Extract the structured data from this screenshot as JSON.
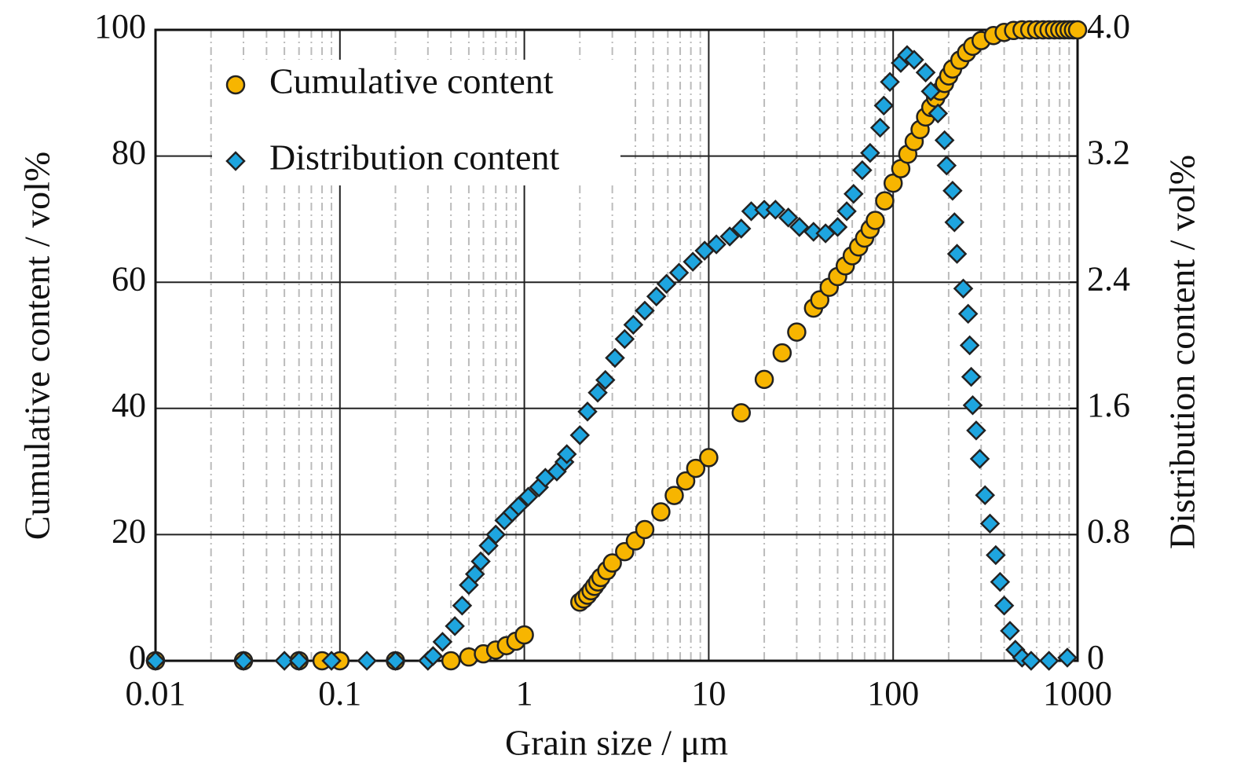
{
  "chart_data": {
    "type": "scatter",
    "xlabel": "Grain size / μm",
    "ylabel": "Cumulative content / vol%",
    "y2label": "Distribution content / vol%",
    "xscale": "log",
    "xlim": [
      0.01,
      1000
    ],
    "xticks": [
      0.01,
      0.1,
      1,
      10,
      100,
      1000
    ],
    "ylim": [
      0,
      100
    ],
    "yticks": [
      0,
      20,
      40,
      60,
      80,
      100
    ],
    "y2lim": [
      0,
      4
    ],
    "y2ticks": [
      0,
      0.8,
      1.6,
      2.4,
      3.2,
      {
        "value": 4,
        "label": "4.0"
      }
    ],
    "grid": true,
    "minor_grid": true,
    "legend": "upper left",
    "series": [
      {
        "name": "Cumulative content",
        "color": "#f7b500",
        "marker": "circle",
        "axis": "y",
        "x": [
          0.01,
          0.03,
          0.06,
          0.08,
          0.1,
          0.2,
          0.4,
          0.5,
          0.6,
          0.7,
          0.8,
          0.9,
          1.0,
          2.0,
          2.1,
          2.2,
          2.3,
          2.4,
          2.5,
          2.6,
          2.8,
          3.0,
          3.5,
          4.0,
          4.5,
          5.5,
          6.5,
          7.5,
          8.5,
          10,
          15,
          20,
          25,
          30,
          37,
          40,
          45,
          50,
          55,
          60,
          65,
          70,
          75,
          80,
          90,
          100,
          110,
          120,
          130,
          140,
          150,
          160,
          170,
          180,
          190,
          200,
          210,
          230,
          250,
          270,
          300,
          350,
          400,
          450,
          500,
          550,
          600,
          650,
          700,
          750,
          800,
          850,
          900,
          950,
          1000
        ],
        "values": [
          0,
          0,
          0,
          0,
          0,
          0,
          0,
          0.6,
          1.1,
          1.7,
          2.4,
          3.1,
          4.1,
          9.3,
          9.8,
          10.4,
          11.1,
          11.8,
          12.5,
          13.2,
          14.3,
          15.5,
          17.3,
          19.0,
          20.8,
          23.6,
          26.2,
          28.5,
          30.5,
          32.2,
          39.3,
          44.6,
          48.8,
          52.1,
          55.9,
          57.2,
          59.2,
          60.9,
          62.6,
          64.2,
          65.6,
          67.0,
          68.4,
          69.8,
          72.9,
          75.7,
          78.0,
          80.3,
          82.3,
          84.2,
          86.2,
          87.7,
          89.2,
          90.3,
          91.5,
          92.7,
          93.8,
          95.2,
          96.4,
          97.4,
          98.3,
          99.1,
          99.6,
          99.9,
          100,
          100,
          100,
          100,
          100,
          100,
          100,
          100,
          100,
          100,
          100
        ]
      },
      {
        "name": "Distribution content",
        "color": "#1ea5df",
        "marker": "diamond",
        "axis": "y2",
        "x": [
          0.01,
          0.03,
          0.05,
          0.06,
          0.09,
          0.14,
          0.2,
          0.3,
          0.32,
          0.36,
          0.42,
          0.46,
          0.5,
          0.54,
          0.58,
          0.64,
          0.7,
          0.78,
          0.86,
          0.93,
          1.05,
          1.2,
          1.3,
          1.5,
          1.65,
          1.7,
          2.0,
          2.2,
          2.5,
          2.75,
          3.1,
          3.5,
          3.9,
          4.5,
          5.2,
          5.9,
          6.9,
          8.2,
          9.5,
          11,
          13,
          15,
          17,
          20,
          23,
          27,
          31,
          37,
          43,
          50,
          56,
          61,
          68,
          75,
          85,
          89,
          96,
          110,
          119,
          130,
          150,
          160,
          175,
          190,
          195,
          210,
          215,
          222,
          240,
          255,
          260,
          265,
          270,
          282,
          295,
          315,
          335,
          360,
          380,
          400,
          430,
          460,
          500,
          560,
          700,
          880
        ],
        "values": [
          0,
          0,
          0,
          0,
          0,
          0,
          0,
          0,
          0.03,
          0.12,
          0.22,
          0.35,
          0.48,
          0.55,
          0.63,
          0.73,
          0.8,
          0.89,
          0.94,
          0.98,
          1.04,
          1.1,
          1.16,
          1.2,
          1.26,
          1.31,
          1.43,
          1.58,
          1.7,
          1.78,
          1.92,
          2.04,
          2.13,
          2.22,
          2.31,
          2.39,
          2.46,
          2.53,
          2.6,
          2.64,
          2.69,
          2.74,
          2.85,
          2.86,
          2.86,
          2.81,
          2.75,
          2.72,
          2.71,
          2.75,
          2.85,
          2.96,
          3.11,
          3.22,
          3.38,
          3.52,
          3.67,
          3.79,
          3.84,
          3.81,
          3.73,
          3.61,
          3.47,
          3.3,
          3.14,
          2.98,
          2.78,
          2.58,
          2.36,
          2.2,
          2.0,
          1.8,
          1.62,
          1.46,
          1.28,
          1.05,
          0.87,
          0.67,
          0.5,
          0.35,
          0.19,
          0.07,
          0.02,
          0,
          0,
          0.02
        ]
      }
    ]
  }
}
